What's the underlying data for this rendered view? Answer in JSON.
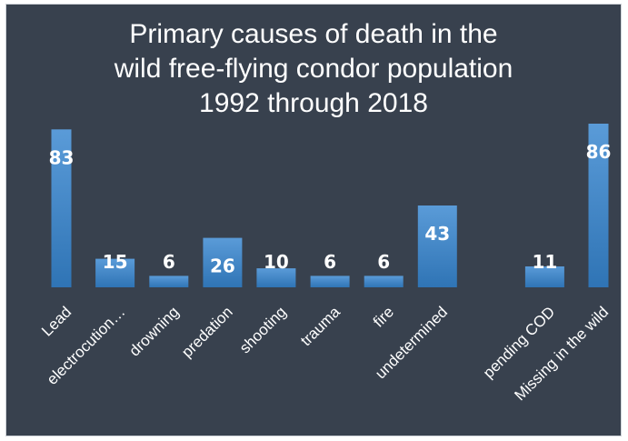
{
  "chart_data": {
    "type": "bar",
    "title_lines": [
      "Primary causes of death in the",
      "wild free-flying condor population",
      "1992 through 2018"
    ],
    "categories": [
      "Lead",
      "electrocution…",
      "drowning",
      "predation",
      "shooting",
      "trauma",
      "fire",
      "undetermined",
      "",
      "pending COD",
      "Missing in the wild"
    ],
    "values": [
      83,
      15,
      6,
      26,
      10,
      6,
      6,
      43,
      null,
      11,
      86
    ],
    "data_labels": [
      "83",
      "15",
      "6",
      "26",
      "10",
      "6",
      "6",
      "43",
      "",
      "11",
      "86"
    ],
    "xlabel": "",
    "ylabel": "",
    "grid": false,
    "legend": "none",
    "colors": {
      "background": "#38414e",
      "bar": "#3b82c4",
      "bar_light": "#5a9bd8",
      "text": "#ffffff"
    }
  }
}
